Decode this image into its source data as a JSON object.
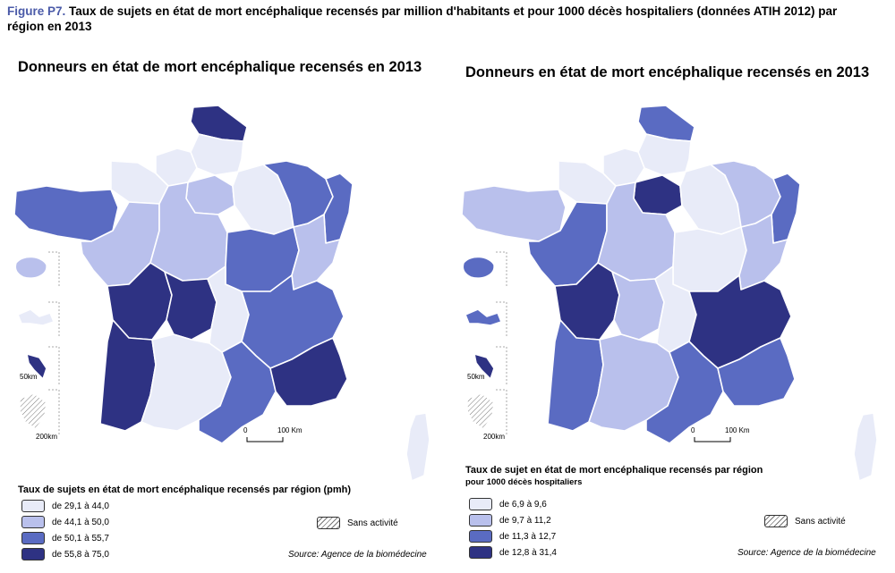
{
  "figure": {
    "number": "Figure P7.",
    "title": "Taux de sujets en état de mort encéphalique recensés par million d'habitants et pour 1000 décès hospitaliers (données ATIH 2012) par région en 2013"
  },
  "colors": {
    "class1": "#e8ebf8",
    "class2": "#b9c0ec",
    "class3": "#5a6bc2",
    "class4": "#2e3283",
    "outline": "#ffffff"
  },
  "left_map": {
    "title": "Donneurs en état de mort encéphalique recensés en 2013",
    "legend_title": "Taux de sujets en état de mort encéphalique recensés par région (pmh)",
    "legend": [
      {
        "label": "de 29,1 à 44,0",
        "class": 1
      },
      {
        "label": "de 44,1 à 50,0",
        "class": 2
      },
      {
        "label": "de 50,1 à 55,7",
        "class": 3
      },
      {
        "label": "de 55,8 à 75,0",
        "class": 4
      }
    ],
    "sans_activite": "Sans activité",
    "source": "Source: Agence de la biomédecine",
    "scale": {
      "zero": "0",
      "distance": "100 Km"
    },
    "inset_scales": {
      "small": "50km",
      "large": "200km"
    },
    "regions": [
      {
        "name": "Nord-Pas-de-Calais",
        "class": 4
      },
      {
        "name": "Picardie",
        "class": 1
      },
      {
        "name": "Haute-Normandie",
        "class": 1
      },
      {
        "name": "Basse-Normandie",
        "class": 1
      },
      {
        "name": "Bretagne",
        "class": 3
      },
      {
        "name": "Ile-de-France",
        "class": 2
      },
      {
        "name": "Champagne-Ardenne",
        "class": 1
      },
      {
        "name": "Lorraine",
        "class": 3
      },
      {
        "name": "Alsace",
        "class": 3
      },
      {
        "name": "Pays de la Loire",
        "class": 2
      },
      {
        "name": "Centre",
        "class": 2
      },
      {
        "name": "Bourgogne",
        "class": 3
      },
      {
        "name": "Franche-Comté",
        "class": 2
      },
      {
        "name": "Poitou-Charentes",
        "class": 4
      },
      {
        "name": "Limousin",
        "class": 4
      },
      {
        "name": "Auvergne",
        "class": 1
      },
      {
        "name": "Rhône-Alpes",
        "class": 3
      },
      {
        "name": "Aquitaine",
        "class": 4
      },
      {
        "name": "Midi-Pyrénées",
        "class": 1
      },
      {
        "name": "Languedoc-Roussillon",
        "class": 3
      },
      {
        "name": "Provence-Alpes-Côte d'Azur",
        "class": 4
      },
      {
        "name": "Corse",
        "class": 1
      },
      {
        "name": "Martinique",
        "class": 4
      },
      {
        "name": "Guadeloupe",
        "class": 1
      },
      {
        "name": "Réunion",
        "class": 2
      },
      {
        "name": "Guyane",
        "class": 0
      }
    ]
  },
  "right_map": {
    "title": "Donneurs en état de mort encéphalique recensés en 2013",
    "legend_title": "Taux de sujet en état de mort encéphalique recensés par région",
    "legend_subtitle": "pour 1000 décès hospitaliers",
    "legend": [
      {
        "label": "de 6,9 à 9,6",
        "class": 1
      },
      {
        "label": "de 9,7 à 11,2",
        "class": 2
      },
      {
        "label": "de 11,3 à 12,7",
        "class": 3
      },
      {
        "label": "de 12,8 à 31,4",
        "class": 4
      }
    ],
    "sans_activite": "Sans activité",
    "source": "Source: Agence de la biomédecine",
    "scale": {
      "zero": "0",
      "distance": "100 Km"
    },
    "inset_scales": {
      "small": "50km",
      "large": "200km"
    },
    "regions": [
      {
        "name": "Nord-Pas-de-Calais",
        "class": 3
      },
      {
        "name": "Picardie",
        "class": 1
      },
      {
        "name": "Haute-Normandie",
        "class": 1
      },
      {
        "name": "Basse-Normandie",
        "class": 1
      },
      {
        "name": "Bretagne",
        "class": 2
      },
      {
        "name": "Ile-de-France",
        "class": 4
      },
      {
        "name": "Champagne-Ardenne",
        "class": 1
      },
      {
        "name": "Lorraine",
        "class": 2
      },
      {
        "name": "Alsace",
        "class": 3
      },
      {
        "name": "Pays de la Loire",
        "class": 3
      },
      {
        "name": "Centre",
        "class": 2
      },
      {
        "name": "Bourgogne",
        "class": 1
      },
      {
        "name": "Franche-Comté",
        "class": 2
      },
      {
        "name": "Poitou-Charentes",
        "class": 4
      },
      {
        "name": "Limousin",
        "class": 2
      },
      {
        "name": "Auvergne",
        "class": 1
      },
      {
        "name": "Rhône-Alpes",
        "class": 4
      },
      {
        "name": "Aquitaine",
        "class": 3
      },
      {
        "name": "Midi-Pyrénées",
        "class": 2
      },
      {
        "name": "Languedoc-Roussillon",
        "class": 3
      },
      {
        "name": "Provence-Alpes-Côte d'Azur",
        "class": 3
      },
      {
        "name": "Corse",
        "class": 1
      },
      {
        "name": "Martinique",
        "class": 4
      },
      {
        "name": "Guadeloupe",
        "class": 3
      },
      {
        "name": "Réunion",
        "class": 3
      },
      {
        "name": "Guyane",
        "class": 0
      }
    ]
  }
}
